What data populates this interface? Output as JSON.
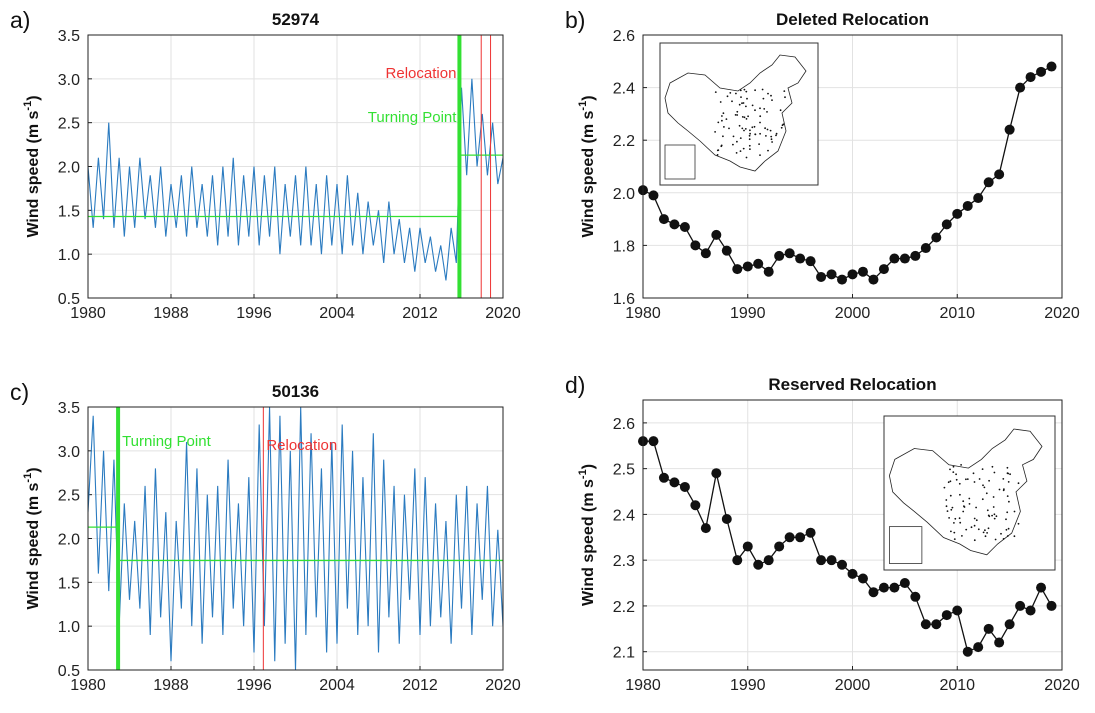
{
  "chart_data": [
    {
      "type": "line",
      "panel": "a)",
      "title": "52974",
      "ylabel": "Wind speed (m s",
      "ylabel_sup": "-1",
      "ylabel_end": ")",
      "x": [
        1980,
        1980.5,
        1981,
        1981.5,
        1982,
        1982.5,
        1983,
        1983.5,
        1984,
        1984.5,
        1985,
        1985.5,
        1986,
        1986.5,
        1987,
        1987.5,
        1988,
        1988.5,
        1989,
        1989.5,
        1990,
        1990.5,
        1991,
        1991.5,
        1992,
        1992.5,
        1993,
        1993.5,
        1994,
        1994.5,
        1995,
        1995.5,
        1996,
        1996.5,
        1997,
        1997.5,
        1998,
        1998.5,
        1999,
        1999.5,
        2000,
        2000.5,
        2001,
        2001.5,
        2002,
        2002.5,
        2003,
        2003.5,
        2004,
        2004.5,
        2005,
        2005.5,
        2006,
        2006.5,
        2007,
        2007.5,
        2008,
        2008.5,
        2009,
        2009.5,
        2010,
        2010.5,
        2011,
        2011.5,
        2012,
        2012.5,
        2013,
        2013.5,
        2014,
        2014.5,
        2015,
        2015.5,
        2016,
        2016.5,
        2017,
        2017.5,
        2018,
        2018.5,
        2019,
        2019.5,
        2020
      ],
      "series": [
        {
          "color": "#2b7bc0",
          "values": [
            2.0,
            1.3,
            2.1,
            1.4,
            2.5,
            1.3,
            2.1,
            1.2,
            2.0,
            1.3,
            2.1,
            1.4,
            1.9,
            1.3,
            2.0,
            1.2,
            1.8,
            1.3,
            1.9,
            1.2,
            2.0,
            1.3,
            1.8,
            1.2,
            1.9,
            1.1,
            2.0,
            1.2,
            2.1,
            1.1,
            1.9,
            1.2,
            2.0,
            1.1,
            1.9,
            1.2,
            2.0,
            1.0,
            1.8,
            1.2,
            1.9,
            1.1,
            2.0,
            1.1,
            1.8,
            1.0,
            1.9,
            1.1,
            1.8,
            1.0,
            1.9,
            1.1,
            1.7,
            1.0,
            1.6,
            1.1,
            1.5,
            0.9,
            1.6,
            1.0,
            1.4,
            0.9,
            1.3,
            0.8,
            1.3,
            0.9,
            1.2,
            0.8,
            1.1,
            0.7,
            1.3,
            0.9,
            2.9,
            1.9,
            3.0,
            2.0,
            2.6,
            1.9,
            2.5,
            1.8,
            2.1
          ]
        }
      ],
      "means": [
        {
          "x": [
            1980,
            2015.8
          ],
          "value": 1.43
        },
        {
          "x": [
            2015.8,
            2020
          ],
          "value": 2.13
        }
      ],
      "turning_point": {
        "x": 2015.8,
        "label": "Turning Point",
        "color": "#33e033"
      },
      "relocations": {
        "x": [
          2017.9,
          2018.8
        ],
        "label": "Relocation",
        "color": "#ee3333"
      },
      "xlim": [
        1980,
        2020
      ],
      "xticks": [
        1980,
        1988,
        1996,
        2004,
        2012,
        2020
      ],
      "ylim": [
        0.5,
        3.5
      ],
      "yticks": [
        0.5,
        {
          "value": 1,
          "label": "1.0"
        },
        1.5,
        {
          "value": 2,
          "label": "2.0"
        },
        2.5,
        {
          "value": 3,
          "label": "3.0"
        },
        3.5
      ],
      "grid": true
    },
    {
      "type": "line",
      "panel": "b)",
      "title": "Deleted Relocation",
      "ylabel": "Wind speed (m s",
      "ylabel_sup": "-1",
      "ylabel_end": ")",
      "markers": true,
      "x": [
        1980,
        1981,
        1982,
        1983,
        1984,
        1985,
        1986,
        1987,
        1988,
        1989,
        1990,
        1991,
        1992,
        1993,
        1994,
        1995,
        1996,
        1997,
        1998,
        1999,
        2000,
        2001,
        2002,
        2003,
        2004,
        2005,
        2006,
        2007,
        2008,
        2009,
        2010,
        2011,
        2012,
        2013,
        2014,
        2015,
        2016,
        2017,
        2018,
        2019
      ],
      "series": [
        {
          "color": "#111111",
          "values": [
            2.01,
            1.99,
            1.9,
            1.88,
            1.87,
            1.8,
            1.77,
            1.84,
            1.78,
            1.71,
            1.72,
            1.73,
            1.7,
            1.76,
            1.77,
            1.75,
            1.74,
            1.68,
            1.69,
            1.67,
            1.69,
            1.7,
            1.67,
            1.71,
            1.75,
            1.75,
            1.76,
            1.79,
            1.83,
            1.88,
            1.92,
            1.95,
            1.98,
            2.04,
            2.07,
            2.24,
            2.4,
            2.44,
            2.46,
            2.48
          ]
        }
      ],
      "xlim": [
        1980,
        2020
      ],
      "xticks": [
        1980,
        1990,
        2000,
        2010,
        2020
      ],
      "ylim": [
        1.6,
        2.6
      ],
      "yticks": [
        1.6,
        1.8,
        {
          "value": 2,
          "label": "2.0"
        },
        2.2,
        2.4,
        2.6
      ],
      "grid": true
    },
    {
      "type": "line",
      "panel": "c)",
      "title": "50136",
      "ylabel": "Wind speed (m s",
      "ylabel_sup": "-1",
      "ylabel_end": ")",
      "x": [
        1980,
        1980.5,
        1981,
        1981.5,
        1982,
        1982.5,
        1983,
        1983.5,
        1984,
        1984.5,
        1985,
        1985.5,
        1986,
        1986.5,
        1987,
        1987.5,
        1988,
        1988.5,
        1989,
        1989.5,
        1990,
        1990.5,
        1991,
        1991.5,
        1992,
        1992.5,
        1993,
        1993.5,
        1994,
        1994.5,
        1995,
        1995.5,
        1996,
        1996.5,
        1997,
        1997.5,
        1998,
        1998.5,
        1999,
        1999.5,
        2000,
        2000.5,
        2001,
        2001.5,
        2002,
        2002.5,
        2003,
        2003.5,
        2004,
        2004.5,
        2005,
        2005.5,
        2006,
        2006.5,
        2007,
        2007.5,
        2008,
        2008.5,
        2009,
        2009.5,
        2010,
        2010.5,
        2011,
        2011.5,
        2012,
        2012.5,
        2013,
        2013.5,
        2014,
        2014.5,
        2015,
        2015.5,
        2016,
        2016.5,
        2017,
        2017.5,
        2018,
        2018.5,
        2019,
        2019.5,
        2020
      ],
      "series": [
        {
          "color": "#2b7bc0",
          "values": [
            2.3,
            3.4,
            1.6,
            3.0,
            1.4,
            2.9,
            1.0,
            2.4,
            1.3,
            2.2,
            1.2,
            2.6,
            0.9,
            2.8,
            1.1,
            2.3,
            0.6,
            2.2,
            1.2,
            3.1,
            1.0,
            2.8,
            0.8,
            2.5,
            1.1,
            2.6,
            0.9,
            2.9,
            1.2,
            2.4,
            1.0,
            2.7,
            0.7,
            3.3,
            1.0,
            3.5,
            0.6,
            3.4,
            0.8,
            3.0,
            0.5,
            3.5,
            0.9,
            3.2,
            1.1,
            2.8,
            0.7,
            3.1,
            0.8,
            3.3,
            1.2,
            3.0,
            0.9,
            2.7,
            1.0,
            3.2,
            0.7,
            2.9,
            1.1,
            2.6,
            0.8,
            2.5,
            1.3,
            2.8,
            0.9,
            2.7,
            1.0,
            2.4,
            1.1,
            2.2,
            0.8,
            2.5,
            1.2,
            2.6,
            0.9,
            2.4,
            1.3,
            2.6,
            1.0,
            2.1,
            1.0
          ]
        }
      ],
      "means": [
        {
          "x": [
            1980,
            1982.9
          ],
          "value": 2.13
        },
        {
          "x": [
            1982.9,
            2020
          ],
          "value": 1.75
        }
      ],
      "turning_point": {
        "x": 1982.9,
        "label": "Turning Point",
        "color": "#33e033"
      },
      "relocations": {
        "x": [
          1996.9
        ],
        "label": "Relocation",
        "color": "#ee3333"
      },
      "xlim": [
        1980,
        2020
      ],
      "xticks": [
        1980,
        1988,
        1996,
        2004,
        2012,
        2020
      ],
      "ylim": [
        0.5,
        3.5
      ],
      "yticks": [
        0.5,
        {
          "value": 1,
          "label": "1.0"
        },
        1.5,
        {
          "value": 2,
          "label": "2.0"
        },
        2.5,
        {
          "value": 3,
          "label": "3.0"
        },
        3.5
      ],
      "grid": true
    },
    {
      "type": "line",
      "panel": "d)",
      "title": "Reserved Relocation",
      "ylabel": "Wind speed (m s",
      "ylabel_sup": "-1",
      "ylabel_end": ")",
      "markers": true,
      "x": [
        1980,
        1981,
        1982,
        1983,
        1984,
        1985,
        1986,
        1987,
        1988,
        1989,
        1990,
        1991,
        1992,
        1993,
        1994,
        1995,
        1996,
        1997,
        1998,
        1999,
        2000,
        2001,
        2002,
        2003,
        2004,
        2005,
        2006,
        2007,
        2008,
        2009,
        2010,
        2011,
        2012,
        2013,
        2014,
        2015,
        2016,
        2017,
        2018,
        2019
      ],
      "series": [
        {
          "color": "#111111",
          "values": [
            2.56,
            2.56,
            2.48,
            2.47,
            2.46,
            2.42,
            2.37,
            2.49,
            2.39,
            2.3,
            2.33,
            2.29,
            2.3,
            2.33,
            2.35,
            2.35,
            2.36,
            2.3,
            2.3,
            2.29,
            2.27,
            2.26,
            2.23,
            2.24,
            2.24,
            2.25,
            2.22,
            2.16,
            2.16,
            2.18,
            2.19,
            2.1,
            2.11,
            2.15,
            2.12,
            2.16,
            2.2,
            2.19,
            2.24,
            2.2
          ]
        }
      ],
      "xlim": [
        1980,
        2020
      ],
      "xticks": [
        1980,
        1990,
        2000,
        2010,
        2020
      ],
      "ylim": [
        2.06,
        2.65
      ],
      "yticks": [
        2.1,
        2.2,
        2.3,
        2.4,
        2.5,
        2.6
      ],
      "grid": true
    }
  ]
}
